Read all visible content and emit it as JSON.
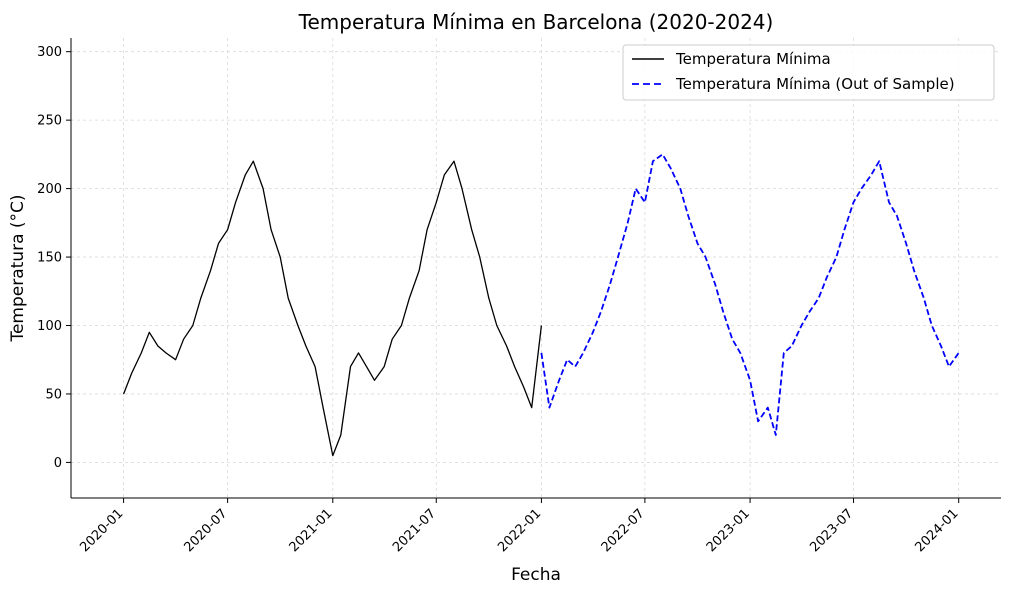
{
  "chart_data": {
    "type": "line",
    "title": "Temperatura Mínima en Barcelona (2020-2024)",
    "xlabel": "Fecha",
    "ylabel": "Temperatura (°C)",
    "x_ticks": [
      "2020-01",
      "2020-07",
      "2021-01",
      "2021-07",
      "2022-01",
      "2022-07",
      "2023-01",
      "2023-07",
      "2024-01"
    ],
    "y_ticks": [
      0,
      50,
      100,
      150,
      200,
      250,
      300
    ],
    "xlim": [
      "2019-10-01",
      "2024-03-15"
    ],
    "ylim": [
      -26,
      310
    ],
    "grid": true,
    "legend_position": "top-right",
    "series": [
      {
        "name": "Temperatura Mínima",
        "color": "#000000",
        "line_style": "solid",
        "x": [
          "2020-01-01",
          "2020-01-15",
          "2020-02-01",
          "2020-02-15",
          "2020-03-01",
          "2020-03-15",
          "2020-04-01",
          "2020-04-15",
          "2020-05-01",
          "2020-05-15",
          "2020-06-01",
          "2020-06-15",
          "2020-07-01",
          "2020-07-15",
          "2020-08-01",
          "2020-08-15",
          "2020-09-01",
          "2020-09-15",
          "2020-10-01",
          "2020-10-15",
          "2020-11-01",
          "2020-11-15",
          "2020-12-01",
          "2020-12-15",
          "2021-01-01",
          "2021-01-15",
          "2021-02-01",
          "2021-02-15",
          "2021-03-01",
          "2021-03-15",
          "2021-04-01",
          "2021-04-15",
          "2021-05-01",
          "2021-05-15",
          "2021-06-01",
          "2021-06-15",
          "2021-07-01",
          "2021-07-15",
          "2021-08-01",
          "2021-08-15",
          "2021-09-01",
          "2021-09-15",
          "2021-10-01",
          "2021-10-15",
          "2021-11-01",
          "2021-11-15",
          "2021-12-01",
          "2021-12-15",
          "2022-01-01"
        ],
        "values": [
          50,
          65,
          80,
          95,
          85,
          80,
          75,
          90,
          100,
          120,
          140,
          160,
          170,
          190,
          210,
          220,
          200,
          170,
          150,
          120,
          100,
          85,
          70,
          40,
          5,
          20,
          70,
          80,
          70,
          60,
          70,
          90,
          100,
          120,
          140,
          170,
          190,
          210,
          220,
          200,
          170,
          150,
          120,
          100,
          85,
          70,
          55,
          40,
          100
        ]
      },
      {
        "name": "Temperatura Mínima (Out of Sample)",
        "color": "#0000ff",
        "line_style": "dashed",
        "x": [
          "2022-01-01",
          "2022-01-15",
          "2022-02-01",
          "2022-02-15",
          "2022-03-01",
          "2022-03-15",
          "2022-04-01",
          "2022-04-15",
          "2022-05-01",
          "2022-05-15",
          "2022-06-01",
          "2022-06-15",
          "2022-07-01",
          "2022-07-15",
          "2022-08-01",
          "2022-08-15",
          "2022-09-01",
          "2022-09-15",
          "2022-10-01",
          "2022-10-15",
          "2022-11-01",
          "2022-11-15",
          "2022-12-01",
          "2022-12-15",
          "2023-01-01",
          "2023-01-15",
          "2023-02-01",
          "2023-02-15",
          "2023-03-01",
          "2023-03-15",
          "2023-04-01",
          "2023-04-15",
          "2023-05-01",
          "2023-05-15",
          "2023-06-01",
          "2023-06-15",
          "2023-07-01",
          "2023-07-15",
          "2023-08-01",
          "2023-08-15",
          "2023-09-01",
          "2023-09-15",
          "2023-10-01",
          "2023-10-15",
          "2023-11-01",
          "2023-11-15",
          "2023-12-01",
          "2023-12-15",
          "2024-01-01"
        ],
        "values": [
          80,
          40,
          60,
          75,
          70,
          80,
          95,
          110,
          130,
          150,
          175,
          200,
          190,
          220,
          225,
          215,
          200,
          180,
          160,
          150,
          130,
          110,
          90,
          80,
          60,
          30,
          40,
          20,
          80,
          85,
          100,
          110,
          120,
          135,
          150,
          170,
          190,
          200,
          210,
          220,
          190,
          180,
          160,
          140,
          120,
          100,
          85,
          70,
          80
        ]
      }
    ]
  }
}
